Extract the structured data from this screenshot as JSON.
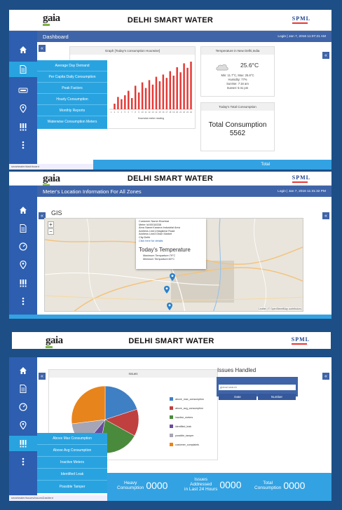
{
  "app": {
    "logo": "gaia",
    "title": "DELHI SMART WATER",
    "brand": "SPML"
  },
  "screen1": {
    "page_title": "Dashboard",
    "login": "Login | Jan 7, 2016 11:07:21 AM",
    "graph_title": "Graph [Today's consumption Hourwise]",
    "graph_xlabel": "Hourwise meter reading",
    "temp_title": "Temperature in New Delhi,India",
    "temp_value": "25.6°C",
    "temp_minmax": "Min: 11.7°C,  Max: 25.6°C",
    "humidity": "Humidity: 77%",
    "sunrise": "Sunrise: 7:16 am",
    "sunset": "Sunset: 5:41 pm",
    "total_title": "Today's Total Consumption",
    "total_label": "Total Consumption",
    "total_value": "5562",
    "url": "smartwater/dashboard",
    "menu": [
      "Average Day Demand",
      "Per Capita Daily Consumption",
      "Peak Factors",
      "Hourly Consumption",
      "Monthly Reports",
      "Waterwise Consumption Meters"
    ],
    "bottom_right": "Total"
  },
  "screen2": {
    "page_title": "Meter's Location Information For All Zones",
    "login": "Login | Jan 7, 2016 11:31:32 PM",
    "section_title": "GIS",
    "popup": {
      "customer": "Customer Name:Kharbrai",
      "meter": "Meter Id:00018338",
      "area": "Area Name:Karama Industrial Area",
      "address1": "Address Line1:Magistrar Road",
      "address2": "Address Line2:Dhan Market",
      "city": "City:Delhi",
      "link": "Click here for details",
      "temp_heading": "Today's Temperature",
      "max_temp": "Maximum Temparture:79°C",
      "min_temp": "Minimum Temparture:60°C"
    },
    "attribution": "Leaflet | © OpenStreetMap contributors"
  },
  "screen3": {
    "chart_title": "Issues",
    "issues_title": "Issues Handled",
    "search_placeholder": "global search",
    "col_date": "Date",
    "col_number": "Number",
    "menu": [
      "Above Max Consumption",
      "Above Avg Consumption",
      "Inactive Meters",
      "Identified Leak",
      "Possible Tamper"
    ],
    "stat1_label1": "Heavy",
    "stat1_label2": "Consumption",
    "stat1_value": "0000",
    "stat2_label1": "Issues",
    "stat2_label2": "Addressed",
    "stat2_label3": "in Last 24 Hours",
    "stat2_value": "0000",
    "stat3_label1": "Total",
    "stat3_label2": "Consumption",
    "stat3_value": "0000",
    "url": "smartwater/issues/issuesDashbrd"
  },
  "chart_data": [
    {
      "type": "bar",
      "title": "Graph [Today's consumption Hourwise]",
      "xlabel": "Hourwise meter reading",
      "ylabel": "",
      "categories": [
        "1",
        "2",
        "3",
        "4",
        "5",
        "6",
        "7",
        "8",
        "9",
        "10",
        "11",
        "12",
        "13",
        "14",
        "15",
        "16",
        "17",
        "18",
        "19",
        "20",
        "21",
        "22",
        "23",
        "24"
      ],
      "values": [
        0,
        10,
        22,
        18,
        25,
        33,
        20,
        42,
        30,
        48,
        38,
        52,
        44,
        58,
        50,
        62,
        56,
        68,
        60,
        75,
        66,
        82,
        74,
        85
      ],
      "ylim": [
        0,
        90
      ],
      "colors": {
        "bar": "#e53935"
      }
    },
    {
      "type": "pie",
      "title": "Issues",
      "categories": [
        "above_max_consumption",
        "above_avg_consumption",
        "inactive_meters",
        "identified_leak",
        "possible_tamper",
        "customer_complaints"
      ],
      "values": [
        20,
        13,
        20,
        8,
        12,
        27
      ],
      "colors": [
        "#3f7fc3",
        "#c0403f",
        "#4a8a3c",
        "#6a4c9c",
        "#a5a5b5",
        "#e8841c"
      ],
      "legend": "right"
    }
  ]
}
